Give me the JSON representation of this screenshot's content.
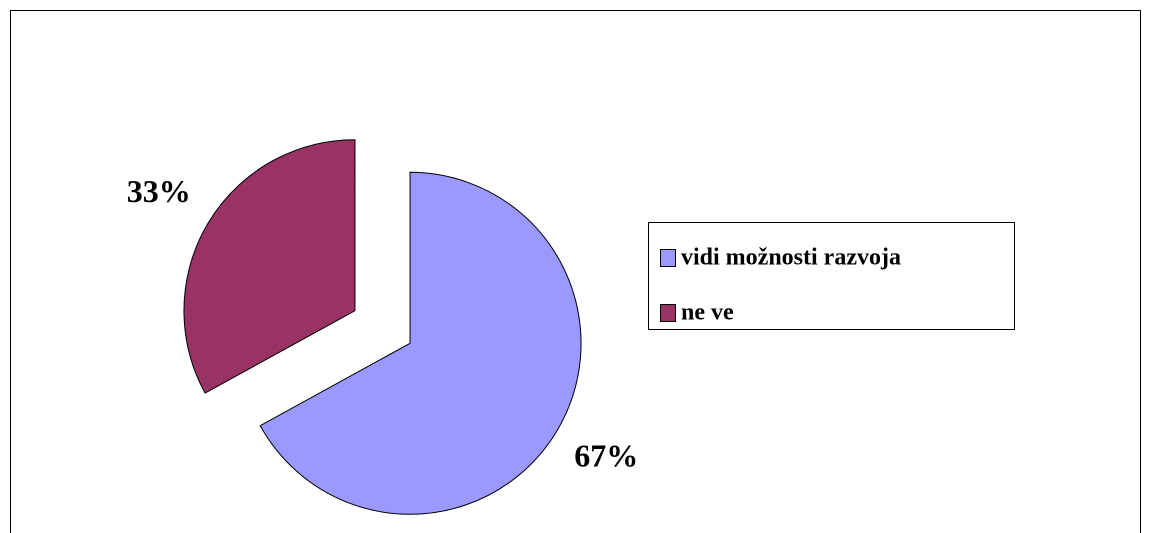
{
  "chart_data": {
    "type": "pie",
    "categories": [
      "vidi možnosti razvoja",
      "ne ve"
    ],
    "values": [
      67,
      33
    ],
    "value_labels": [
      "67%",
      "33%"
    ],
    "colors": [
      "#9999ff",
      "#993366"
    ],
    "legend": "right"
  }
}
